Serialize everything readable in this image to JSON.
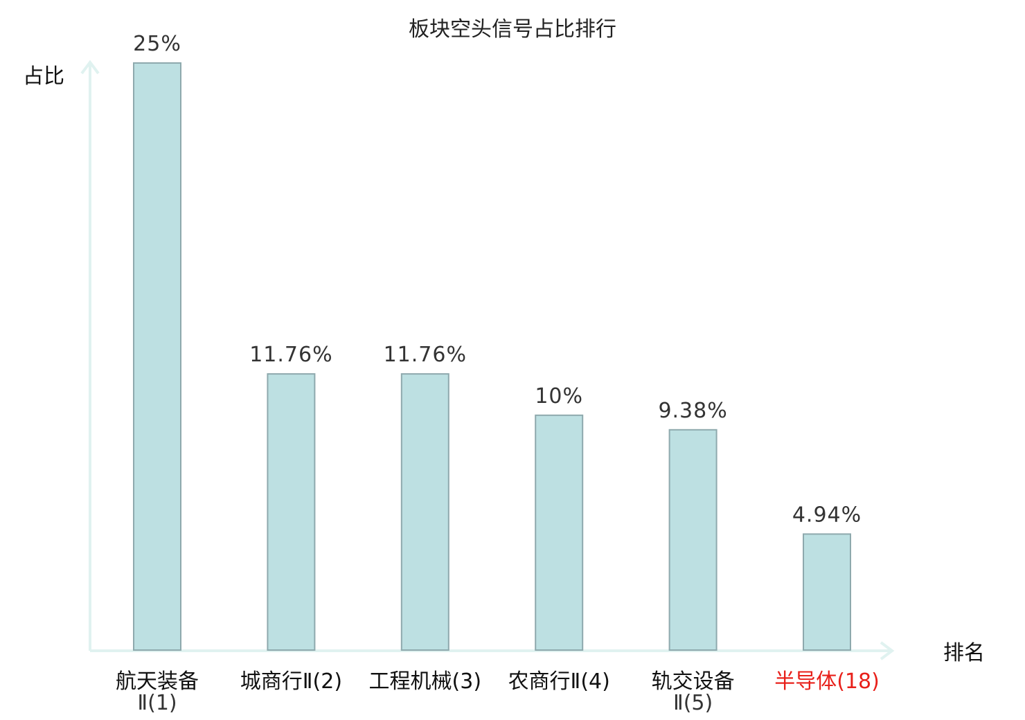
{
  "chart_data": {
    "type": "bar",
    "title": "板块空头信号占比排行",
    "ylabel": "占比",
    "xlabel": "排名",
    "ylim": [
      0,
      25
    ],
    "grid": false,
    "categories": [
      {
        "line1": "航天装备",
        "line2": "Ⅱ(1)",
        "highlight": false
      },
      {
        "line1": "城商行Ⅱ(2)",
        "line2": "",
        "highlight": false
      },
      {
        "line1": "工程机械(3)",
        "line2": "",
        "highlight": false
      },
      {
        "line1": "农商行Ⅱ(4)",
        "line2": "",
        "highlight": false
      },
      {
        "line1": "轨交设备",
        "line2": "Ⅱ(5)",
        "highlight": false
      },
      {
        "line1": "半导体(18)",
        "line2": "",
        "highlight": true
      }
    ],
    "values": [
      25,
      11.76,
      11.76,
      10,
      9.38,
      4.94
    ],
    "value_labels": [
      "25%",
      "11.76%",
      "11.76%",
      "10%",
      "9.38%",
      "4.94%"
    ]
  },
  "colors": {
    "bar_fill": "#bde0e2",
    "bar_stroke": "#8ea9ad",
    "axis": "#e0f2f0",
    "highlight": "#e8201a",
    "text": "#222222"
  }
}
